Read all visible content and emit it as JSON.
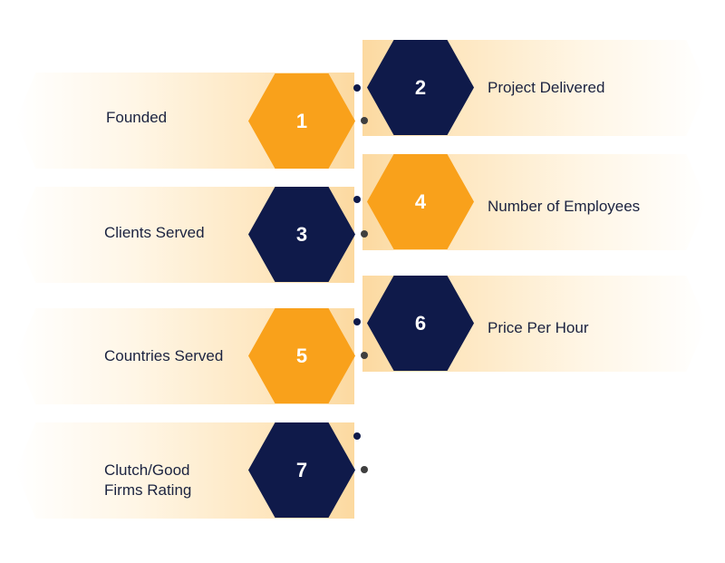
{
  "items": [
    {
      "number": "1",
      "label": "Founded"
    },
    {
      "number": "2",
      "label": "Project Delivered"
    },
    {
      "number": "3",
      "label": "Clients Served"
    },
    {
      "number": "4",
      "label": "Number of Employees"
    },
    {
      "number": "5",
      "label": "Countries Served"
    },
    {
      "number": "6",
      "label": "Price Per Hour"
    },
    {
      "number": "7",
      "label": "Clutch/Good Firms Rating"
    }
  ],
  "colors": {
    "orange": "#f9a11b",
    "navy": "#0f1a4a",
    "label_text": "#1b2340"
  }
}
